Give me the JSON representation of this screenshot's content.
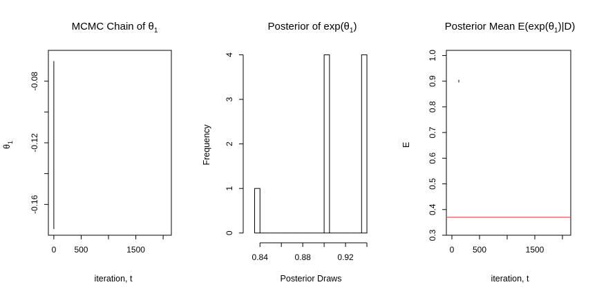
{
  "chart_data": [
    {
      "type": "line",
      "title": "MCMC Chain of θ",
      "title_sub": "1",
      "xlabel": "iteration, t",
      "ylabel": "θ",
      "ylabel_sub": "1",
      "xlim": [
        -100,
        2150
      ],
      "ylim": [
        -0.18,
        -0.06
      ],
      "xticks": [
        0,
        500,
        1500
      ],
      "xtick_labels": [
        "0",
        "500",
        "1500"
      ],
      "xticks_unlabeled": [
        1000,
        2000
      ],
      "yticks": [
        -0.16,
        -0.12,
        -0.08
      ],
      "ytick_labels": [
        "-0.16",
        "-0.12",
        "-0.08"
      ],
      "yticks_unlabeled": [
        -0.14,
        -0.1
      ],
      "series": [
        {
          "x": [
            0,
            0
          ],
          "y": [
            -0.176,
            -0.067
          ]
        }
      ],
      "line_color": "#000000"
    },
    {
      "type": "bar",
      "title": "Posterior of exp(θ",
      "title_sub": "1",
      "title_tail": ")",
      "xlabel": "Posterior Draws",
      "ylabel": "Frequency",
      "xlim": [
        0.8308,
        0.9458
      ],
      "ylim": [
        -0.05,
        4.1
      ],
      "xticks": [
        0.84,
        0.88,
        0.92
      ],
      "xtick_labels": [
        "0.84",
        "0.88",
        "0.92"
      ],
      "xticks_unlabeled": [
        0.86,
        0.9,
        0.94
      ],
      "yticks": [
        0,
        1,
        2,
        3,
        4
      ],
      "ytick_labels": [
        "0",
        "1",
        "2",
        "3",
        "4"
      ],
      "bins": [
        {
          "left": 0.835,
          "right": 0.84,
          "count": 1
        },
        {
          "left": 0.84,
          "right": 0.845,
          "count": 0
        },
        {
          "left": 0.845,
          "right": 0.85,
          "count": 0
        },
        {
          "left": 0.85,
          "right": 0.855,
          "count": 0
        },
        {
          "left": 0.855,
          "right": 0.86,
          "count": 0
        },
        {
          "left": 0.86,
          "right": 0.865,
          "count": 0
        },
        {
          "left": 0.865,
          "right": 0.87,
          "count": 0
        },
        {
          "left": 0.87,
          "right": 0.875,
          "count": 0
        },
        {
          "left": 0.875,
          "right": 0.88,
          "count": 0
        },
        {
          "left": 0.88,
          "right": 0.885,
          "count": 0
        },
        {
          "left": 0.885,
          "right": 0.89,
          "count": 0
        },
        {
          "left": 0.89,
          "right": 0.895,
          "count": 0
        },
        {
          "left": 0.895,
          "right": 0.9,
          "count": 0
        },
        {
          "left": 0.9,
          "right": 0.905,
          "count": 4
        },
        {
          "left": 0.905,
          "right": 0.91,
          "count": 0
        },
        {
          "left": 0.91,
          "right": 0.915,
          "count": 0
        },
        {
          "left": 0.915,
          "right": 0.92,
          "count": 0
        },
        {
          "left": 0.92,
          "right": 0.925,
          "count": 0
        },
        {
          "left": 0.925,
          "right": 0.93,
          "count": 0
        },
        {
          "left": 0.93,
          "right": 0.935,
          "count": 0
        },
        {
          "left": 0.935,
          "right": 0.94,
          "count": 4
        }
      ]
    },
    {
      "type": "line",
      "title": "Posterior Mean E(exp(θ",
      "title_sub": "1",
      "title_tail": ")|D)",
      "xlabel": "iteration, t",
      "ylabel": "E",
      "xlim": [
        -100,
        2150
      ],
      "ylim": [
        0.3,
        1.02
      ],
      "xticks": [
        0,
        500,
        1500
      ],
      "xtick_labels": [
        "0",
        "500",
        "1500"
      ],
      "xticks_unlabeled": [
        1000,
        2000
      ],
      "yticks": [
        0.3,
        0.4,
        0.5,
        0.6,
        0.7,
        0.8,
        0.9,
        1.0
      ],
      "ytick_labels": [
        "0.3",
        "0.4",
        "0.5",
        "0.6",
        "0.7",
        "0.8",
        "0.9",
        "1.0"
      ],
      "series": [
        {
          "x": [
            0,
            0
          ],
          "y": [
            0.895,
            0.905
          ],
          "color": "#000000"
        }
      ],
      "hline": {
        "y": 0.37,
        "color": "#e8202a"
      }
    }
  ]
}
